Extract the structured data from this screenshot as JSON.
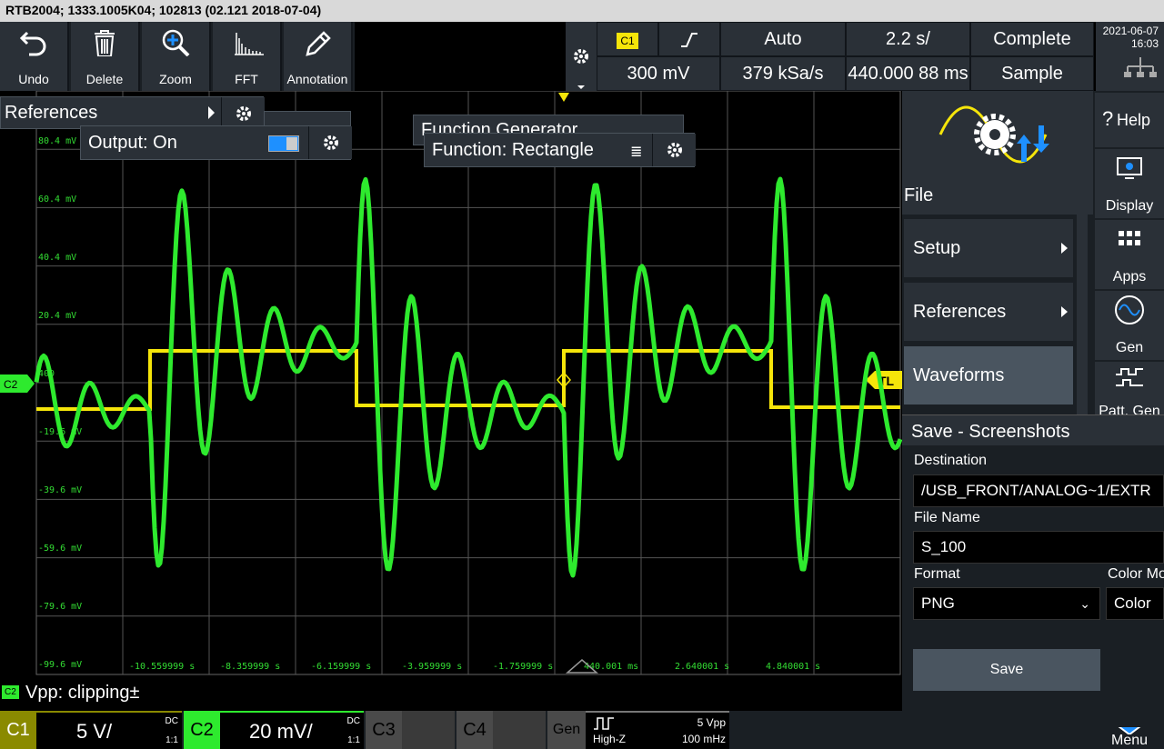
{
  "window": {
    "title": "RTB2004; 1333.1005K04; 102813 (02.121 2018-07-04)"
  },
  "toolbar": {
    "items": [
      {
        "label": "Undo",
        "icon": "undo-icon"
      },
      {
        "label": "Delete",
        "icon": "trash-icon"
      },
      {
        "label": "Zoom",
        "icon": "zoom-icon"
      },
      {
        "label": "FFT",
        "icon": "fft-icon"
      },
      {
        "label": "Annotation",
        "icon": "pencil-icon"
      }
    ]
  },
  "trigger": {
    "channel": "C1",
    "slope_icon": "rising-edge-icon",
    "mode": "Auto",
    "timebase": "2.2 s/",
    "acq_state": "Complete",
    "level": "300 mV",
    "sample_rate": "379 kSa/s",
    "position": "440.000 88 ms",
    "acq_mode": "Sample"
  },
  "datetime": {
    "date": "2021-06-07",
    "time": "16:03"
  },
  "popups": {
    "references": "References",
    "output": "Output: On",
    "function_generator": "Function Generator",
    "function": "Function: Rectangle"
  },
  "grid": {
    "y_labels": [
      "80.4 mV",
      "60.4 mV",
      "40.4 mV",
      "20.4 mV",
      "400",
      "-19.6 mV",
      "-39.6 mV",
      "-59.6 mV",
      "-79.6 mV",
      "-99.6 mV"
    ],
    "x_labels": [
      "-10.559999 s",
      "-8.359999 s",
      "-6.159999 s",
      "-3.959999 s",
      "-1.759999 s",
      "440.001 ms",
      "2.640001 s",
      "4.840001 s"
    ],
    "ch2_marker": "C2",
    "trigger_marker": "TL"
  },
  "colors": {
    "ch1": "#f5e50a",
    "ch2": "#2eea2e",
    "accent": "#1e90ff"
  },
  "file_menu": {
    "title": "File",
    "items": [
      "Setup",
      "References",
      "Waveforms"
    ],
    "selected": "Waveforms"
  },
  "side": {
    "help": "Help",
    "display": "Display",
    "apps": "Apps",
    "gen": "Gen",
    "patt": "Patt. Gen",
    "menu": "Menu"
  },
  "save_panel": {
    "title": "Save - Screenshots",
    "destination_label": "Destination",
    "destination": "/USB_FRONT/ANALOG~1/EXTR",
    "filename_label": "File Name",
    "filename": "S_100",
    "format_label": "Format",
    "format": "PNG",
    "colormode_label": "Color Mo",
    "colormode": "Color",
    "save_button": "Save"
  },
  "measure": {
    "channel": "C2",
    "text": "Vpp: clipping±"
  },
  "channels": [
    {
      "name": "C1",
      "scale": "5 V/",
      "coupling": "DC",
      "ratio": "1:1",
      "color": "#8a8a00"
    },
    {
      "name": "C2",
      "scale": "20 mV/",
      "coupling": "DC",
      "ratio": "1:1",
      "color": "#2eea2e"
    },
    {
      "name": "C3"
    },
    {
      "name": "C4"
    }
  ],
  "gen": {
    "label": "Gen",
    "impedance": "High-Z",
    "amplitude": "5 Vpp",
    "frequency": "100 mHz"
  }
}
